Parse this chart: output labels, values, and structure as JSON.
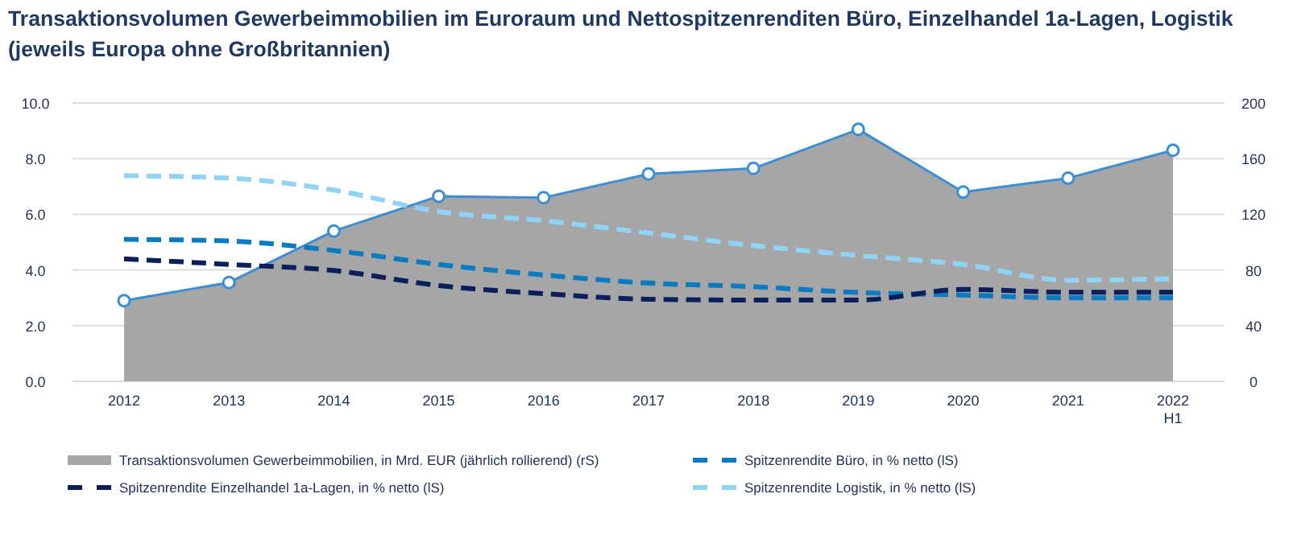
{
  "chart_data": {
    "type": "line",
    "title": "Transaktionsvolumen Gewerbeimmobilien im Euroraum und Nettospitzenrenditen Büro, Einzelhandel 1a-Lagen, Logistik\n(jeweils Europa ohne Großbritannien)",
    "categories": [
      "2012",
      "2013",
      "2014",
      "2015",
      "2016",
      "2017",
      "2018",
      "2019",
      "2020",
      "2021",
      "2022\nH1"
    ],
    "series": [
      {
        "name": "Transaktionsvolumen Gewerbeimmobilien, in Mrd. EUR (jährlich rollierend) (rS)",
        "type": "area",
        "axis": "y2",
        "color": "#a6a6a6",
        "marker": "circle",
        "values": [
          58,
          71,
          108,
          133,
          132,
          149,
          153,
          181,
          136,
          146,
          166
        ]
      },
      {
        "name": "Spitzenrendite Büro, in % netto (lS)",
        "color": "#0a7bc1",
        "line_style": "dashed",
        "marker": "none",
        "values": [
          5.1,
          5.04,
          4.7,
          4.2,
          3.82,
          3.53,
          3.4,
          3.19,
          3.1,
          3.0,
          3.0
        ]
      },
      {
        "name": "Spitzenrendite Einzelhandel 1a-Lagen, in % netto (lS)",
        "color": "#0b1f5c",
        "line_style": "dashed",
        "marker": "none",
        "values": [
          4.4,
          4.2,
          3.98,
          3.44,
          3.15,
          2.95,
          2.92,
          2.92,
          3.3,
          3.2,
          3.2
        ]
      },
      {
        "name": "Spitzenrendite Logistik, in % netto (lS)",
        "color": "#8fd3f5",
        "line_style": "dashed",
        "marker": "none",
        "values": [
          7.39,
          7.3,
          6.87,
          6.1,
          5.77,
          5.33,
          4.88,
          4.52,
          4.2,
          3.63,
          3.69
        ]
      }
    ],
    "ylim": [
      0,
      10
    ],
    "yticks": [
      {
        "value": 0,
        "label": "0.0"
      },
      {
        "value": 2,
        "label": "2.0"
      },
      {
        "value": 4,
        "label": "4.0"
      },
      {
        "value": 6,
        "label": "6.0"
      },
      {
        "value": 8,
        "label": "8.0"
      },
      {
        "value": 10,
        "label": "10.0"
      }
    ],
    "y2lim": [
      0,
      200
    ],
    "y2ticks": [
      0,
      40,
      80,
      120,
      160,
      200
    ],
    "grid": "y",
    "legend": "bottom"
  }
}
